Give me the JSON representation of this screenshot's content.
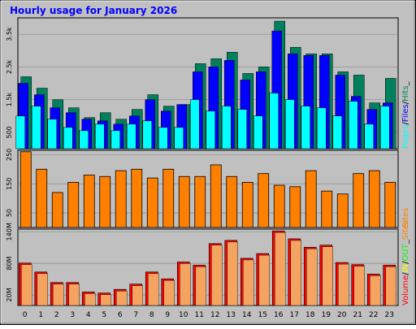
{
  "chart_data": {
    "title": "Hourly usage for January 2026",
    "colors": {
      "hits": "#00805c",
      "files": "#0000ff",
      "pages": "#00ffff",
      "sites": "#ff8000",
      "volume": "#ff0000",
      "in": "#ffff00",
      "out": "#00ff00",
      "plot_bg": "#c0c0c0",
      "title": "#0000ff"
    },
    "categories": [
      "0",
      "1",
      "2",
      "3",
      "4",
      "5",
      "6",
      "7",
      "8",
      "9",
      "10",
      "11",
      "12",
      "13",
      "14",
      "15",
      "16",
      "17",
      "18",
      "19",
      "20",
      "21",
      "22",
      "23"
    ],
    "panels": [
      {
        "type": "bar",
        "ylim": [
          0,
          4000
        ],
        "ticks": [
          "500",
          "1.5k",
          "2.5k",
          "3.5k"
        ],
        "tick_values": [
          500,
          1500,
          2500,
          3500
        ],
        "legend": [
          "Pages",
          "/",
          "Files",
          "/",
          "Hits",
          "_"
        ],
        "series": [
          {
            "name": "Hits",
            "values": [
              2200,
              1850,
              1500,
              1250,
              950,
              1100,
              900,
              1200,
              1650,
              1300,
              1350,
              2600,
              2750,
              2950,
              2300,
              2500,
              3900,
              3100,
              2900,
              2900,
              2350,
              2250,
              1400,
              2150
            ]
          },
          {
            "name": "Files",
            "values": [
              2000,
              1650,
              1250,
              1100,
              900,
              850,
              750,
              1000,
              1500,
              1150,
              1350,
              2350,
              2500,
              2700,
              2100,
              2350,
              3600,
              2900,
              2850,
              2850,
              2250,
              1600,
              1200,
              1400
            ]
          },
          {
            "name": "Pages",
            "values": [
              1000,
              1300,
              900,
              650,
              550,
              750,
              550,
              750,
              850,
              650,
              650,
              1500,
              1150,
              1300,
              1200,
              1000,
              1700,
              1500,
              1300,
              1250,
              1000,
              1450,
              750,
              1300
            ]
          }
        ]
      },
      {
        "type": "bar",
        "ylim": [
          0,
          265
        ],
        "ticks": [
          "50",
          "150",
          "250"
        ],
        "tick_values": [
          50,
          150,
          250
        ],
        "legend": [
          "Sites"
        ],
        "series": [
          {
            "name": "Sites",
            "values": [
              260,
              200,
              120,
              155,
              180,
              175,
              195,
              200,
              170,
              200,
              175,
              175,
              215,
              175,
              155,
              185,
              145,
              140,
              195,
              125,
              115,
              185,
              195,
              155
            ]
          }
        ]
      },
      {
        "type": "bar",
        "ylim": [
          0,
          145
        ],
        "ticks": [
          "20M",
          "80M",
          "140M"
        ],
        "tick_values": [
          20,
          80,
          140
        ],
        "legend": [
          "Volume",
          "/",
          "IN",
          "/",
          "OUT",
          "_",
          "Sites"
        ],
        "series": [
          {
            "name": "Volume",
            "values": [
              79,
              62,
              42,
              42,
              24,
              22,
              29,
              39,
              62,
              49,
              81,
              75,
              116,
              122,
              88,
              97,
              140,
              125,
              109,
              113,
              80,
              76,
              58,
              75
            ]
          }
        ]
      }
    ]
  }
}
